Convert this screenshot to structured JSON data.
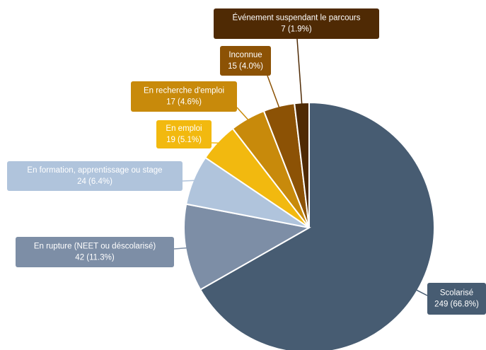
{
  "chart_data": {
    "type": "pie",
    "categories": [
      "Scolarisé",
      "En rupture (NEET ou déscolarisé)",
      "En formation, apprentissage ou stage",
      "En emploi",
      "En recherche d'emploi",
      "Inconnue",
      "Événement suspendant le parcours"
    ],
    "values": [
      249,
      42,
      24,
      19,
      17,
      15,
      7
    ],
    "value_labels": [
      "249 (66.8%)",
      "42 (11.3%)",
      "24 (6.4%)",
      "19 (5.1%)",
      "17 (4.6%)",
      "15 (4.0%)",
      "7 (1.9%)"
    ],
    "colors": [
      "#475c72",
      "#7d8ea6",
      "#b0c4dc",
      "#f2b90f",
      "#c88a0b",
      "#8c5205",
      "#4f2a04"
    ]
  }
}
